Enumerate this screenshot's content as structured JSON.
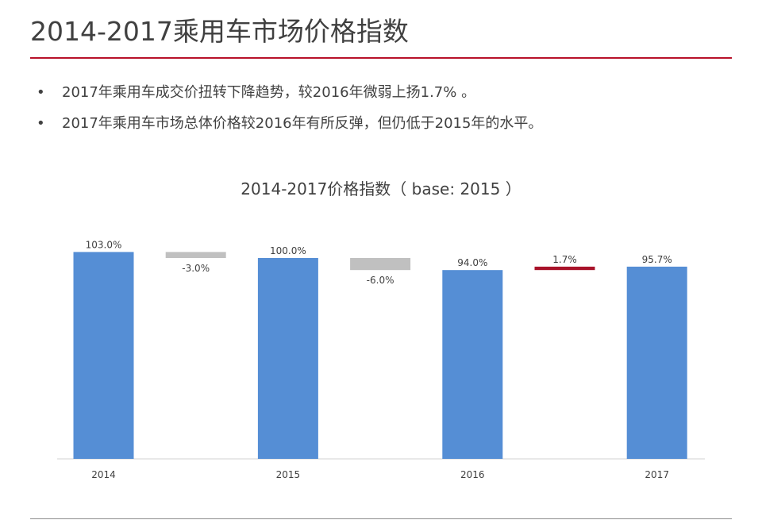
{
  "page": {
    "title": "2014-2017乘用车市场价格指数"
  },
  "bullets": [
    "2017年乘用车成交价扭转下降趋势，较2016年微弱上扬1.7% 。",
    "2017年乘用车市场总体价格较2016年有所反弹，但仍低于2015年的水平。"
  ],
  "bullet_symbol": "•",
  "chart_data": {
    "type": "bar",
    "subtype": "waterfall",
    "title": "2014-2017价格指数（ base: 2015 ）",
    "categories": [
      "2014",
      "",
      "2015",
      "",
      "2016",
      "",
      "2017"
    ],
    "bars": [
      {
        "label": "103.0%",
        "start": 0,
        "end": 103.0,
        "kind": "total",
        "color": "#558ed5"
      },
      {
        "label": "-3.0%",
        "start": 103.0,
        "end": 100.0,
        "kind": "decrease",
        "color": "#c0c0c0"
      },
      {
        "label": "100.0%",
        "start": 0,
        "end": 100.0,
        "kind": "total",
        "color": "#558ed5"
      },
      {
        "label": "-6.0%",
        "start": 100.0,
        "end": 94.0,
        "kind": "decrease",
        "color": "#c0c0c0"
      },
      {
        "label": "94.0%",
        "start": 0,
        "end": 94.0,
        "kind": "total",
        "color": "#558ed5"
      },
      {
        "label": "1.7%",
        "start": 94.0,
        "end": 95.7,
        "kind": "increase",
        "color": "#a8132a"
      },
      {
        "label": "95.7%",
        "start": 0,
        "end": 95.7,
        "kind": "total",
        "color": "#558ed5"
      }
    ],
    "y_axis_visible": false,
    "grid": false,
    "legend": "none"
  }
}
